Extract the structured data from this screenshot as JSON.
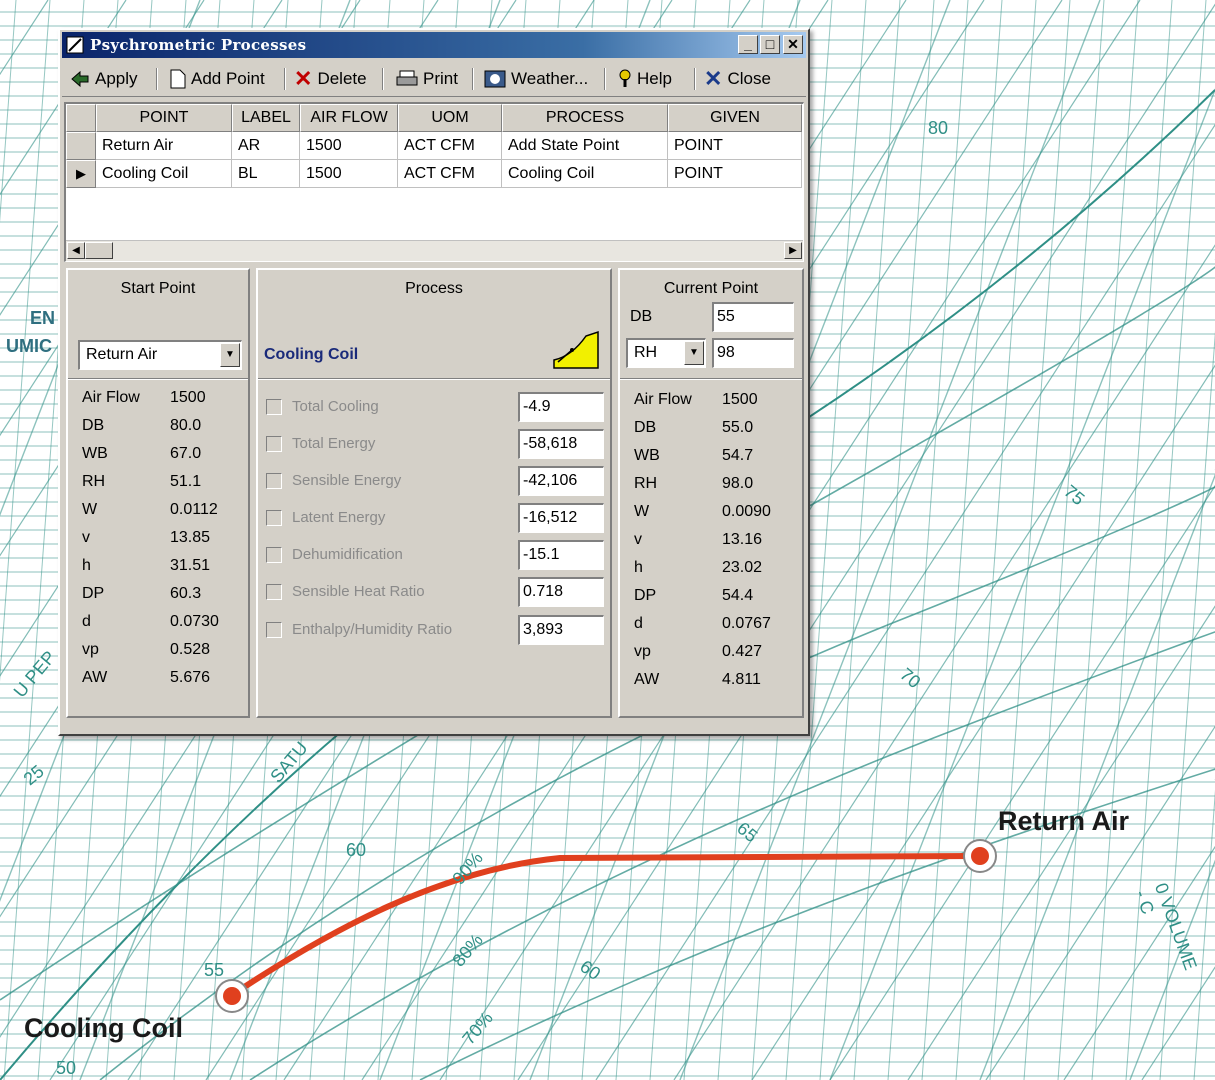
{
  "window": {
    "title": "Psychrometric Processes",
    "controls": {
      "minimize": "_",
      "maximize": "□",
      "close": "✕"
    }
  },
  "toolbar": {
    "apply": "Apply",
    "add_point": "Add Point",
    "delete": "Delete",
    "print": "Print",
    "weather": "Weather...",
    "help": "Help",
    "close": "Close"
  },
  "grid": {
    "headers": [
      "POINT",
      "LABEL",
      "AIR FLOW",
      "UOM",
      "PROCESS",
      "GIVEN"
    ],
    "rows": [
      [
        "Return Air",
        "AR",
        "1500",
        "ACT CFM",
        "Add State Point",
        "POINT"
      ],
      [
        "Cooling Coil",
        "BL",
        "1500",
        "ACT CFM",
        "Cooling Coil",
        "POINT"
      ]
    ],
    "selected_row": 1
  },
  "start_point": {
    "title": "Start Point",
    "selected": "Return Air",
    "props": [
      [
        "Air Flow",
        "1500"
      ],
      [
        "DB",
        "80.0"
      ],
      [
        "WB",
        "67.0"
      ],
      [
        "RH",
        "51.1"
      ],
      [
        "W",
        "0.0112"
      ],
      [
        "v",
        "13.85"
      ],
      [
        "h",
        "31.51"
      ],
      [
        "DP",
        "60.3"
      ],
      [
        "d",
        "0.0730"
      ],
      [
        "vp",
        "0.528"
      ],
      [
        "AW",
        "5.676"
      ]
    ]
  },
  "process": {
    "title": "Process",
    "name": "Cooling Coil",
    "items": [
      [
        "Total Cooling",
        "-4.9"
      ],
      [
        "Total Energy",
        "-58,618"
      ],
      [
        "Sensible Energy",
        "-42,106"
      ],
      [
        "Latent Energy",
        "-16,512"
      ],
      [
        "Dehumidification",
        "-15.1"
      ],
      [
        "Sensible Heat Ratio",
        "0.718"
      ],
      [
        "Enthalpy/Humidity Ratio",
        "3,893"
      ]
    ]
  },
  "current_point": {
    "title": "Current Point",
    "db_label": "DB",
    "db_value": "55",
    "second_select": "RH",
    "second_value": "98",
    "props": [
      [
        "Air Flow",
        "1500"
      ],
      [
        "DB",
        "55.0"
      ],
      [
        "WB",
        "54.7"
      ],
      [
        "RH",
        "98.0"
      ],
      [
        "W",
        "0.0090"
      ],
      [
        "v",
        "13.16"
      ],
      [
        "h",
        "23.02"
      ],
      [
        "DP",
        "54.4"
      ],
      [
        "d",
        "0.0767"
      ],
      [
        "vp",
        "0.427"
      ],
      [
        "AW",
        "4.811"
      ]
    ]
  },
  "chart_labels": {
    "point_a": "Return Air",
    "point_b": "Cooling Coil",
    "numbers": [
      "80",
      "75",
      "70",
      "65",
      "60",
      "60",
      "55",
      "50",
      "25",
      "90%",
      "80%",
      "70%"
    ],
    "fragments": [
      "EN",
      "UMIC",
      "U PEP",
      "SATU",
      "0 VOLUME - C"
    ]
  },
  "colors": {
    "grid": "#2f8f86",
    "process_line": "#e0401e",
    "title_bar": "#0a246a"
  }
}
